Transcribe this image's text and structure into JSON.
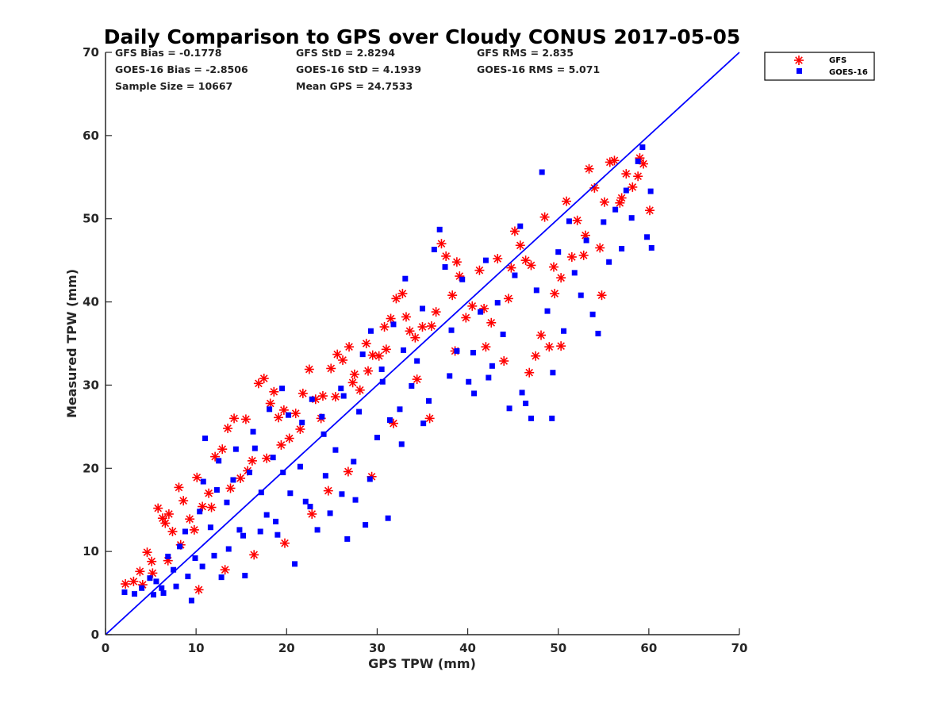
{
  "chart_data": {
    "type": "scatter",
    "title": "Daily Comparison to GPS over Cloudy CONUS 2017-05-05",
    "xlabel": "GPS TPW (mm)",
    "ylabel": "Measured TPW (mm)",
    "xlim": [
      0,
      70
    ],
    "ylim": [
      0,
      70
    ],
    "xticks": [
      "0",
      "10",
      "20",
      "30",
      "40",
      "50",
      "60",
      "70"
    ],
    "yticks": [
      "0",
      "10",
      "20",
      "30",
      "40",
      "50",
      "60",
      "70"
    ],
    "grid": false,
    "legend_position": "outside top-right",
    "stats": [
      "GFS Bias = -0.1778",
      "GFS StD = 2.8294",
      "GFS RMS = 2.835",
      "GOES-16 Bias = -2.8506",
      "GOES-16 StD = 4.1939",
      "GOES-16 RMS = 5.071",
      "Sample Size = 10667",
      "Mean GPS = 24.7533"
    ],
    "reference_line": {
      "x": [
        0,
        70
      ],
      "y": [
        0,
        70
      ],
      "color": "#0000ff"
    },
    "series": [
      {
        "name": "GFS",
        "marker": "asterisk",
        "color": "#ff0000",
        "points": [
          [
            2.2,
            6.1
          ],
          [
            3.1,
            6.4
          ],
          [
            3.8,
            7.6
          ],
          [
            4.6,
            9.9
          ],
          [
            5.1,
            8.8
          ],
          [
            5.8,
            15.2
          ],
          [
            6.3,
            14.0
          ],
          [
            6.6,
            13.4
          ],
          [
            7.0,
            14.5
          ],
          [
            7.4,
            12.4
          ],
          [
            8.1,
            17.7
          ],
          [
            8.6,
            16.1
          ],
          [
            9.3,
            13.9
          ],
          [
            10.1,
            18.9
          ],
          [
            10.7,
            15.4
          ],
          [
            11.4,
            17.0
          ],
          [
            12.1,
            21.4
          ],
          [
            12.9,
            22.3
          ],
          [
            13.5,
            24.8
          ],
          [
            14.2,
            26.0
          ],
          [
            14.9,
            18.8
          ],
          [
            15.5,
            25.9
          ],
          [
            16.2,
            20.9
          ],
          [
            16.9,
            30.2
          ],
          [
            17.5,
            30.8
          ],
          [
            18.2,
            27.8
          ],
          [
            18.6,
            29.2
          ],
          [
            19.1,
            26.1
          ],
          [
            19.7,
            27.0
          ],
          [
            20.3,
            23.6
          ],
          [
            21.0,
            26.6
          ],
          [
            21.8,
            29.0
          ],
          [
            22.5,
            31.9
          ],
          [
            23.2,
            28.3
          ],
          [
            24.0,
            28.7
          ],
          [
            24.9,
            32.0
          ],
          [
            25.6,
            33.7
          ],
          [
            26.2,
            33.0
          ],
          [
            26.9,
            34.6
          ],
          [
            27.5,
            31.3
          ],
          [
            28.1,
            29.4
          ],
          [
            28.8,
            35.0
          ],
          [
            29.5,
            33.6
          ],
          [
            30.2,
            33.5
          ],
          [
            30.8,
            37.0
          ],
          [
            31.5,
            38.0
          ],
          [
            32.1,
            40.4
          ],
          [
            32.8,
            41.0
          ],
          [
            33.6,
            36.5
          ],
          [
            34.2,
            35.7
          ],
          [
            35.0,
            37.0
          ],
          [
            35.8,
            26.0
          ],
          [
            36.5,
            38.8
          ],
          [
            37.1,
            47.0
          ],
          [
            37.6,
            45.5
          ],
          [
            38.3,
            40.8
          ],
          [
            39.1,
            43.1
          ],
          [
            39.8,
            38.1
          ],
          [
            40.5,
            39.5
          ],
          [
            41.3,
            43.8
          ],
          [
            42.0,
            34.6
          ],
          [
            42.6,
            37.5
          ],
          [
            43.3,
            45.2
          ],
          [
            44.0,
            32.9
          ],
          [
            44.5,
            40.4
          ],
          [
            45.2,
            48.5
          ],
          [
            45.8,
            46.8
          ],
          [
            46.4,
            45.0
          ],
          [
            47.0,
            44.4
          ],
          [
            47.5,
            33.5
          ],
          [
            48.1,
            36.0
          ],
          [
            48.5,
            50.2
          ],
          [
            49.0,
            34.6
          ],
          [
            49.6,
            41.0
          ],
          [
            50.3,
            42.9
          ],
          [
            50.9,
            52.1
          ],
          [
            51.5,
            45.4
          ],
          [
            52.1,
            49.8
          ],
          [
            52.8,
            45.6
          ],
          [
            53.4,
            56.0
          ],
          [
            54.0,
            53.7
          ],
          [
            54.6,
            46.5
          ],
          [
            55.1,
            52.0
          ],
          [
            55.7,
            56.8
          ],
          [
            56.2,
            57.0
          ],
          [
            56.8,
            51.9
          ],
          [
            57.5,
            55.4
          ],
          [
            58.2,
            53.8
          ],
          [
            58.8,
            55.1
          ],
          [
            59.4,
            56.6
          ],
          [
            60.1,
            51.0
          ],
          [
            59.0,
            57.3
          ],
          [
            57.0,
            52.5
          ],
          [
            53.0,
            48.0
          ],
          [
            49.5,
            44.2
          ],
          [
            44.8,
            44.1
          ],
          [
            38.8,
            44.8
          ],
          [
            36.0,
            37.1
          ],
          [
            33.2,
            38.2
          ],
          [
            31.0,
            34.3
          ],
          [
            29.0,
            31.7
          ],
          [
            27.3,
            30.3
          ],
          [
            25.4,
            28.6
          ],
          [
            23.8,
            26.0
          ],
          [
            21.5,
            24.7
          ],
          [
            19.4,
            22.8
          ],
          [
            17.8,
            21.2
          ],
          [
            15.7,
            19.7
          ],
          [
            13.8,
            17.6
          ],
          [
            11.7,
            15.3
          ],
          [
            9.8,
            12.6
          ],
          [
            8.3,
            10.8
          ],
          [
            6.9,
            8.9
          ],
          [
            5.2,
            7.4
          ],
          [
            4.1,
            6.0
          ],
          [
            10.3,
            5.4
          ],
          [
            13.2,
            7.8
          ],
          [
            16.4,
            9.6
          ],
          [
            19.8,
            11.0
          ],
          [
            22.8,
            14.5
          ],
          [
            24.6,
            17.3
          ],
          [
            26.8,
            19.6
          ],
          [
            29.4,
            19.0
          ],
          [
            31.8,
            25.4
          ],
          [
            34.4,
            30.7
          ],
          [
            38.6,
            34.1
          ],
          [
            41.8,
            39.2
          ],
          [
            46.8,
            31.5
          ],
          [
            50.3,
            34.7
          ],
          [
            54.8,
            40.8
          ]
        ]
      },
      {
        "name": "GOES-16",
        "marker": "square",
        "color": "#0000ff",
        "points": [
          [
            2.1,
            5.1
          ],
          [
            3.2,
            4.9
          ],
          [
            4.0,
            5.6
          ],
          [
            4.9,
            6.8
          ],
          [
            5.6,
            6.4
          ],
          [
            6.2,
            5.6
          ],
          [
            6.9,
            9.4
          ],
          [
            7.5,
            7.8
          ],
          [
            8.2,
            10.6
          ],
          [
            8.8,
            12.4
          ],
          [
            9.5,
            4.1
          ],
          [
            9.9,
            9.2
          ],
          [
            10.4,
            14.8
          ],
          [
            11.0,
            23.6
          ],
          [
            11.6,
            12.9
          ],
          [
            12.3,
            17.4
          ],
          [
            12.8,
            6.9
          ],
          [
            13.4,
            15.9
          ],
          [
            14.1,
            18.6
          ],
          [
            14.8,
            12.6
          ],
          [
            15.4,
            7.1
          ],
          [
            15.9,
            19.5
          ],
          [
            16.5,
            22.4
          ],
          [
            17.2,
            17.1
          ],
          [
            17.8,
            14.4
          ],
          [
            18.5,
            21.3
          ],
          [
            19.0,
            12.0
          ],
          [
            19.6,
            19.5
          ],
          [
            20.2,
            26.4
          ],
          [
            20.9,
            8.5
          ],
          [
            21.5,
            20.2
          ],
          [
            22.1,
            16.0
          ],
          [
            22.8,
            28.3
          ],
          [
            23.4,
            12.6
          ],
          [
            24.1,
            24.1
          ],
          [
            24.8,
            14.6
          ],
          [
            25.4,
            22.2
          ],
          [
            26.0,
            29.6
          ],
          [
            26.7,
            11.5
          ],
          [
            27.4,
            20.8
          ],
          [
            28.0,
            26.8
          ],
          [
            28.7,
            13.2
          ],
          [
            29.3,
            36.5
          ],
          [
            30.0,
            23.7
          ],
          [
            30.6,
            30.4
          ],
          [
            31.2,
            14.0
          ],
          [
            31.8,
            37.3
          ],
          [
            32.5,
            27.1
          ],
          [
            33.1,
            42.8
          ],
          [
            33.8,
            29.9
          ],
          [
            34.4,
            32.9
          ],
          [
            35.0,
            39.2
          ],
          [
            35.7,
            28.1
          ],
          [
            36.3,
            46.3
          ],
          [
            36.9,
            48.7
          ],
          [
            37.5,
            44.2
          ],
          [
            38.2,
            36.6
          ],
          [
            38.8,
            34.1
          ],
          [
            39.4,
            42.7
          ],
          [
            40.1,
            30.4
          ],
          [
            40.7,
            29.0
          ],
          [
            41.4,
            38.8
          ],
          [
            42.0,
            45.0
          ],
          [
            42.7,
            32.3
          ],
          [
            43.3,
            39.9
          ],
          [
            43.9,
            36.1
          ],
          [
            44.6,
            27.2
          ],
          [
            45.2,
            43.2
          ],
          [
            45.8,
            49.1
          ],
          [
            46.4,
            27.8
          ],
          [
            47.0,
            26.0
          ],
          [
            47.6,
            41.4
          ],
          [
            48.2,
            55.6
          ],
          [
            48.8,
            38.9
          ],
          [
            49.4,
            31.5
          ],
          [
            50.0,
            46.0
          ],
          [
            50.6,
            36.5
          ],
          [
            51.2,
            49.7
          ],
          [
            51.8,
            43.5
          ],
          [
            52.5,
            40.8
          ],
          [
            53.1,
            47.4
          ],
          [
            53.8,
            38.5
          ],
          [
            54.4,
            36.2
          ],
          [
            55.0,
            49.6
          ],
          [
            55.6,
            44.8
          ],
          [
            56.3,
            51.1
          ],
          [
            57.0,
            46.4
          ],
          [
            57.5,
            53.4
          ],
          [
            58.1,
            50.1
          ],
          [
            58.8,
            56.9
          ],
          [
            59.3,
            58.6
          ],
          [
            59.8,
            47.8
          ],
          [
            60.2,
            53.3
          ],
          [
            60.3,
            46.5
          ],
          [
            49.3,
            26.0
          ],
          [
            46.0,
            29.1
          ],
          [
            42.3,
            30.9
          ],
          [
            40.6,
            33.9
          ],
          [
            38.0,
            31.1
          ],
          [
            35.1,
            25.4
          ],
          [
            32.7,
            22.9
          ],
          [
            31.4,
            25.8
          ],
          [
            29.2,
            18.7
          ],
          [
            27.6,
            16.2
          ],
          [
            26.1,
            16.9
          ],
          [
            24.3,
            19.1
          ],
          [
            22.6,
            15.4
          ],
          [
            20.4,
            17.0
          ],
          [
            18.8,
            13.6
          ],
          [
            17.1,
            12.4
          ],
          [
            15.2,
            11.9
          ],
          [
            13.6,
            10.3
          ],
          [
            12.0,
            9.5
          ],
          [
            10.7,
            8.2
          ],
          [
            9.1,
            7.0
          ],
          [
            7.8,
            5.8
          ],
          [
            6.4,
            5.0
          ],
          [
            5.3,
            4.8
          ],
          [
            10.8,
            18.4
          ],
          [
            12.5,
            20.9
          ],
          [
            14.4,
            22.3
          ],
          [
            16.3,
            24.4
          ],
          [
            18.1,
            27.1
          ],
          [
            19.5,
            29.6
          ],
          [
            21.7,
            25.5
          ],
          [
            23.9,
            26.2
          ],
          [
            26.3,
            28.7
          ],
          [
            28.4,
            33.7
          ],
          [
            30.5,
            31.9
          ],
          [
            32.9,
            34.2
          ]
        ]
      }
    ]
  }
}
